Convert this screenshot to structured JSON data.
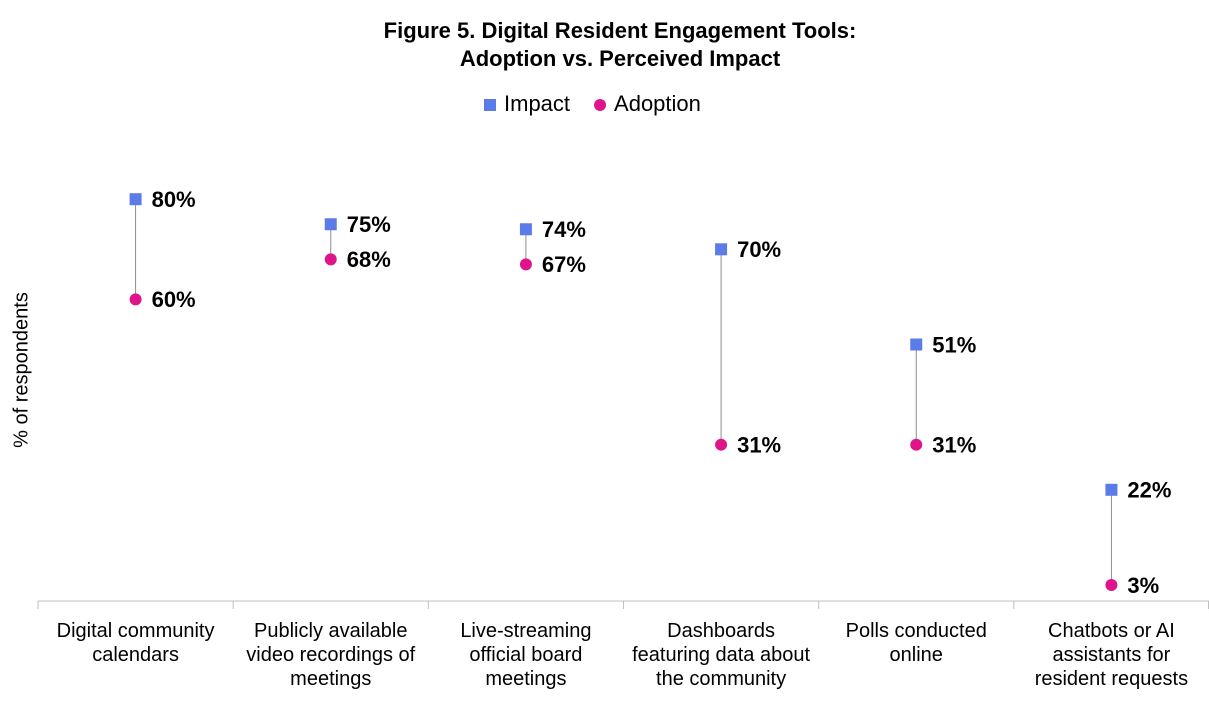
{
  "chart_data": {
    "type": "dumbbell",
    "title": [
      "Figure 5. Digital Resident Engagement Tools:",
      "Adoption vs. Perceived Impact"
    ],
    "y_label": "% of respondents",
    "categories": [
      "Digital community calendars",
      "Publicly available video recordings of meetings",
      "Live-streaming official board meetings",
      "Dashboards featuring data about the community",
      "Polls conducted online",
      "Chatbots or AI assistants for resident requests"
    ],
    "series": [
      {
        "name": "Impact",
        "color": "#5b7be8",
        "marker": "square",
        "values": [
          80,
          75,
          74,
          70,
          51,
          22
        ],
        "value_labels": [
          "80%",
          "75%",
          "74%",
          "70%",
          "51%",
          "22%"
        ]
      },
      {
        "name": "Adoption",
        "color": "#e0148a",
        "marker": "circle",
        "values": [
          60,
          68,
          67,
          31,
          31,
          3
        ],
        "value_labels": [
          "60%",
          "68%",
          "67%",
          "31%",
          "31%",
          "3%"
        ]
      }
    ],
    "ylim": [
      0,
      100
    ],
    "legend": "top"
  }
}
